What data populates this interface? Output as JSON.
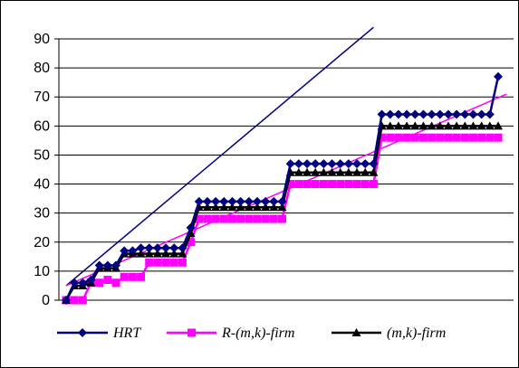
{
  "chart_data": {
    "type": "line",
    "title": "",
    "xlabel": "",
    "ylabel": "",
    "ylim": [
      0,
      90
    ],
    "yticks": [
      "0",
      "10",
      "20",
      "30",
      "40",
      "50",
      "60",
      "70",
      "80",
      "90"
    ],
    "grid": true,
    "legend_position": "bottom",
    "x": [
      1,
      2,
      3,
      4,
      5,
      6,
      7,
      8,
      9,
      10,
      11,
      12,
      13,
      14,
      15,
      16,
      17,
      18,
      19,
      20,
      21,
      22,
      23,
      24,
      25,
      26,
      27,
      28,
      29,
      30,
      31,
      32,
      33,
      34,
      35,
      36,
      37,
      38,
      39,
      40,
      41,
      42,
      43,
      44,
      45,
      46,
      47,
      48,
      49,
      50,
      51,
      52,
      53
    ],
    "series": [
      {
        "name": "HRT",
        "color": "#000080",
        "marker": "diamond",
        "values": [
          0,
          6,
          6,
          7,
          12,
          12,
          12,
          17,
          17,
          18,
          18,
          18,
          18,
          18,
          18,
          25,
          34,
          34,
          34,
          34,
          34,
          34,
          34,
          34,
          34,
          34,
          34,
          47,
          47,
          47,
          47,
          47,
          47,
          47,
          47,
          47,
          47,
          47,
          64,
          64,
          64,
          64,
          64,
          64,
          64,
          64,
          64,
          64,
          64,
          64,
          64,
          64,
          77
        ]
      },
      {
        "name": "R-(m,k)-firm",
        "color": "#ff00ff",
        "marker": "square",
        "values": [
          0,
          0,
          0,
          6,
          6,
          7,
          6,
          8,
          8,
          8,
          13,
          13,
          13,
          13,
          13,
          20,
          28,
          28,
          28,
          28,
          28,
          28,
          28,
          28,
          28,
          28,
          28,
          40,
          40,
          40,
          40,
          40,
          40,
          40,
          40,
          40,
          40,
          40,
          56,
          56,
          56,
          56,
          56,
          56,
          56,
          56,
          56,
          56,
          56,
          56,
          56,
          56,
          56
        ]
      },
      {
        "name": "(m,k)-firm",
        "color": "#000000",
        "marker": "triangle",
        "values": [
          0,
          5,
          5,
          6,
          11,
          11,
          11,
          16,
          16,
          16,
          16,
          16,
          16,
          16,
          16,
          23,
          32,
          32,
          32,
          32,
          32,
          32,
          32,
          32,
          32,
          32,
          32,
          44,
          44,
          44,
          44,
          44,
          44,
          44,
          44,
          44,
          44,
          44,
          60,
          60,
          60,
          60,
          60,
          60,
          60,
          60,
          60,
          60,
          60,
          60,
          60,
          60,
          60
        ]
      }
    ],
    "trendlines": [
      {
        "color": "#000080",
        "from": [
          1,
          5
        ],
        "to": [
          38,
          94
        ]
      },
      {
        "color": "#ff00ff",
        "from": [
          1,
          5
        ],
        "to": [
          54,
          71
        ]
      }
    ]
  }
}
